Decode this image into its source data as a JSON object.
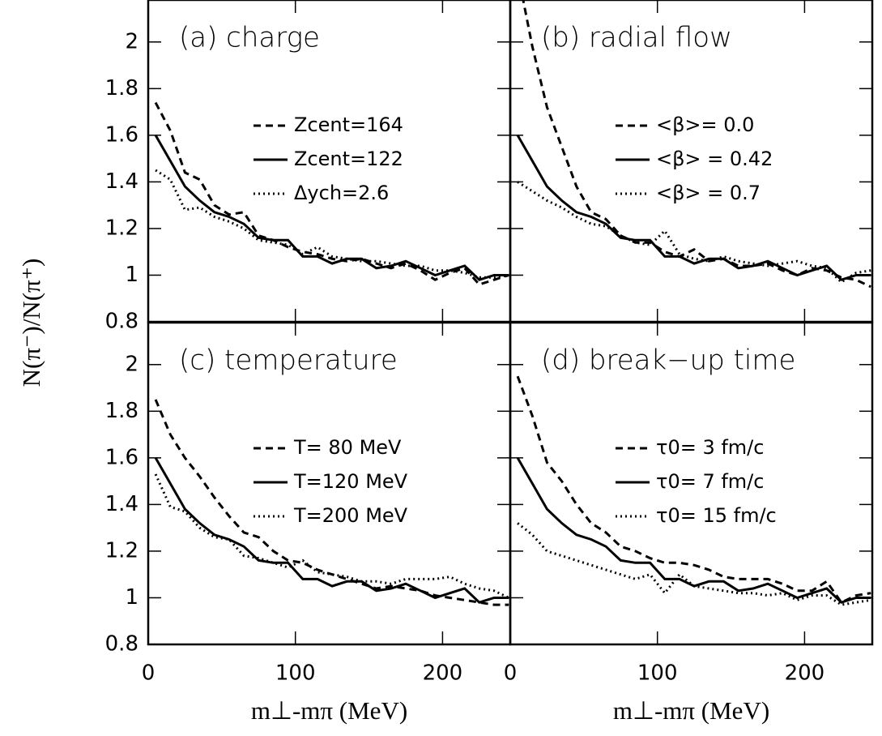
{
  "chart_data": [
    {
      "type": "line",
      "title": "(a) charge",
      "y_label": "N(π⁻)/N(π⁺)",
      "x": [
        5,
        15,
        25,
        35,
        45,
        55,
        65,
        75,
        85,
        95,
        105,
        115,
        125,
        135,
        145,
        155,
        165,
        175,
        185,
        195,
        205,
        215,
        225,
        235,
        245
      ],
      "xlim": [
        0,
        246
      ],
      "ylim": [
        0.8,
        2.18
      ],
      "yticks": [
        0.8,
        1,
        1.2,
        1.4,
        1.6,
        1.8,
        2
      ],
      "series": [
        {
          "name": "Zcent=164",
          "style": "dashed",
          "color": "#000000",
          "values": [
            1.74,
            1.62,
            1.44,
            1.41,
            1.3,
            1.26,
            1.27,
            1.17,
            1.15,
            1.12,
            1.1,
            1.09,
            1.07,
            1.06,
            1.07,
            1.05,
            1.03,
            1.05,
            1.02,
            0.98,
            1.01,
            1.03,
            0.96,
            0.98,
            1.0
          ]
        },
        {
          "name": "Zcent=122",
          "style": "solid",
          "color": "#000000",
          "values": [
            1.6,
            1.49,
            1.38,
            1.32,
            1.27,
            1.25,
            1.22,
            1.16,
            1.15,
            1.15,
            1.08,
            1.08,
            1.05,
            1.07,
            1.07,
            1.03,
            1.04,
            1.06,
            1.03,
            1.0,
            1.02,
            1.04,
            0.98,
            1.0,
            1.0
          ]
        },
        {
          "name": "Δych=2.6",
          "style": "dotted",
          "color": "#000000",
          "values": [
            1.45,
            1.41,
            1.28,
            1.29,
            1.25,
            1.23,
            1.2,
            1.15,
            1.14,
            1.13,
            1.09,
            1.12,
            1.08,
            1.07,
            1.06,
            1.06,
            1.05,
            1.04,
            1.04,
            1.02,
            1.02,
            1.01,
            0.99,
            0.99,
            1.0
          ]
        }
      ]
    },
    {
      "type": "line",
      "title": "(b) radial flow",
      "x": [
        5,
        15,
        25,
        35,
        45,
        55,
        65,
        75,
        85,
        95,
        105,
        115,
        125,
        135,
        145,
        155,
        165,
        175,
        185,
        195,
        205,
        215,
        225,
        235,
        245
      ],
      "xlim": [
        0,
        246
      ],
      "ylim": [
        0.8,
        2.18
      ],
      "series": [
        {
          "name": "<β>= 0.0",
          "style": "dashed",
          "color": "#000000",
          "values": [
            2.3,
            1.98,
            1.72,
            1.55,
            1.38,
            1.27,
            1.24,
            1.17,
            1.14,
            1.14,
            1.1,
            1.08,
            1.11,
            1.06,
            1.07,
            1.04,
            1.04,
            1.05,
            1.02,
            1.0,
            1.03,
            1.02,
            0.99,
            0.98,
            0.95
          ]
        },
        {
          "name": "<β> = 0.42",
          "style": "solid",
          "color": "#000000",
          "values": [
            1.6,
            1.49,
            1.38,
            1.32,
            1.27,
            1.25,
            1.22,
            1.16,
            1.15,
            1.15,
            1.08,
            1.08,
            1.05,
            1.07,
            1.07,
            1.03,
            1.04,
            1.06,
            1.03,
            1.0,
            1.02,
            1.04,
            0.98,
            1.0,
            1.0
          ]
        },
        {
          "name": "<β> = 0.7",
          "style": "dotted",
          "color": "#000000",
          "values": [
            1.4,
            1.36,
            1.32,
            1.29,
            1.25,
            1.22,
            1.21,
            1.17,
            1.14,
            1.13,
            1.19,
            1.09,
            1.07,
            1.06,
            1.08,
            1.06,
            1.05,
            1.04,
            1.05,
            1.06,
            1.04,
            1.03,
            0.97,
            1.01,
            1.02
          ]
        }
      ]
    },
    {
      "type": "line",
      "title": "(c) temperature",
      "x_label": "m⊥-mπ (MeV)",
      "x": [
        5,
        15,
        25,
        35,
        45,
        55,
        65,
        75,
        85,
        95,
        105,
        115,
        125,
        135,
        145,
        155,
        165,
        175,
        185,
        195,
        205,
        215,
        225,
        235,
        245
      ],
      "xlim": [
        0,
        246
      ],
      "xticks": [
        0,
        100,
        200
      ],
      "ylim": [
        0.8,
        2.18
      ],
      "yticks": [
        0.8,
        1,
        1.2,
        1.4,
        1.6,
        1.8,
        2
      ],
      "series": [
        {
          "name": "T= 80 MeV",
          "style": "dashed",
          "color": "#000000",
          "values": [
            1.85,
            1.7,
            1.6,
            1.52,
            1.43,
            1.35,
            1.28,
            1.26,
            1.2,
            1.16,
            1.15,
            1.12,
            1.1,
            1.08,
            1.06,
            1.04,
            1.05,
            1.04,
            1.03,
            1.01,
            1.0,
            0.99,
            0.98,
            0.97,
            0.97
          ]
        },
        {
          "name": "T=120 MeV",
          "style": "solid",
          "color": "#000000",
          "values": [
            1.6,
            1.49,
            1.38,
            1.32,
            1.27,
            1.25,
            1.22,
            1.16,
            1.15,
            1.15,
            1.08,
            1.08,
            1.05,
            1.07,
            1.07,
            1.03,
            1.04,
            1.06,
            1.03,
            1.0,
            1.02,
            1.04,
            0.98,
            1.0,
            1.0
          ]
        },
        {
          "name": "T=200 MeV",
          "style": "dotted",
          "color": "#000000",
          "values": [
            1.53,
            1.39,
            1.37,
            1.3,
            1.26,
            1.25,
            1.18,
            1.17,
            1.15,
            1.13,
            1.16,
            1.11,
            1.1,
            1.09,
            1.07,
            1.07,
            1.06,
            1.08,
            1.08,
            1.08,
            1.09,
            1.06,
            1.04,
            1.03,
            1.0
          ]
        }
      ]
    },
    {
      "type": "line",
      "title": "(d) break−up time",
      "x_label": "m⊥-mπ (MeV)",
      "x": [
        5,
        15,
        25,
        35,
        45,
        55,
        65,
        75,
        85,
        95,
        105,
        115,
        125,
        135,
        145,
        155,
        165,
        175,
        185,
        195,
        205,
        215,
        225,
        235,
        245
      ],
      "xlim": [
        0,
        246
      ],
      "xticks": [
        0,
        100,
        200
      ],
      "ylim": [
        0.8,
        2.18
      ],
      "series": [
        {
          "name": "τ0= 3 fm/c",
          "style": "dashed",
          "color": "#000000",
          "values": [
            1.95,
            1.78,
            1.58,
            1.5,
            1.4,
            1.32,
            1.28,
            1.22,
            1.2,
            1.17,
            1.15,
            1.15,
            1.14,
            1.12,
            1.09,
            1.08,
            1.08,
            1.08,
            1.06,
            1.03,
            1.03,
            1.07,
            0.98,
            1.01,
            1.02
          ]
        },
        {
          "name": "τ0= 7 fm/c",
          "style": "solid",
          "color": "#000000",
          "values": [
            1.6,
            1.49,
            1.38,
            1.32,
            1.27,
            1.25,
            1.22,
            1.16,
            1.15,
            1.15,
            1.08,
            1.08,
            1.05,
            1.07,
            1.07,
            1.03,
            1.04,
            1.06,
            1.03,
            1.0,
            1.02,
            1.04,
            0.98,
            1.0,
            1.0
          ]
        },
        {
          "name": "τ0= 15 fm/c",
          "style": "dotted",
          "color": "#000000",
          "values": [
            1.32,
            1.27,
            1.2,
            1.18,
            1.16,
            1.14,
            1.12,
            1.1,
            1.08,
            1.1,
            1.02,
            1.1,
            1.05,
            1.04,
            1.03,
            1.02,
            1.02,
            1.01,
            1.02,
            0.99,
            1.01,
            1.01,
            0.97,
            0.98,
            0.99
          ]
        }
      ]
    }
  ]
}
